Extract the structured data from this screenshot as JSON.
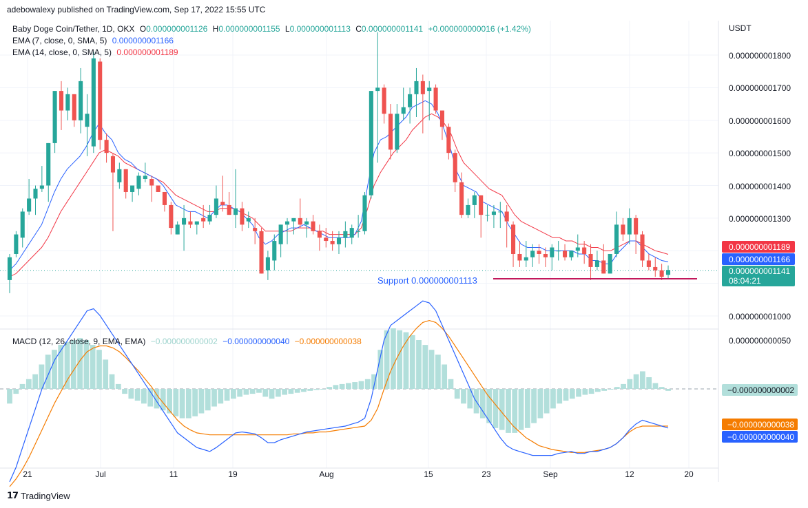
{
  "header": {
    "published": "adebowalexy published on TradingView.com, Sep 17, 2022 15:55 UTC"
  },
  "legend": {
    "symbol": "Baby Doge Coin/Tether, 1D, OKX",
    "ohlc_prefix_o": "O",
    "open": "0.000000001126",
    "ohlc_prefix_h": "H",
    "high": "0.000000001155",
    "ohlc_prefix_l": "L",
    "low": "0.000000001113",
    "ohlc_prefix_c": "C",
    "close": "0.000000001141",
    "change": "+0.000000000016 (+1.42%)",
    "ema7_label": "EMA (7, close, 0, SMA, 5)",
    "ema7_value": "0.000000001166",
    "ema14_label": "EMA (14, close, 0, SMA, 5)",
    "ema14_value": "0.000000001189",
    "macd_label": "MACD (12, 26, close, 9, EMA, EMA)",
    "macd_hist": "−0.000000000002",
    "macd_line": "−0.000000000040",
    "macd_signal": "−0.000000000038"
  },
  "price_axis": {
    "currency": "USDT",
    "ticks": [
      "0.000000001800",
      "0.000000001700",
      "0.000000001600",
      "0.000000001500",
      "0.000000001400",
      "0.000000001300",
      "0.000000001000"
    ]
  },
  "price_badges": {
    "ema14": "0.000000001189",
    "ema7": "0.000000001166",
    "close": "0.000000001141",
    "countdown": "08:04:21"
  },
  "macd_axis": {
    "tick": "0.000000000050"
  },
  "macd_badges": {
    "hist": "−0.000000000002",
    "signal": "−0.000000000038",
    "macd": "−0.000000000040"
  },
  "support_label": "Support 0.000000001113",
  "x_ticks": [
    "21",
    "Jul",
    "11",
    "19",
    "Aug",
    "15",
    "23",
    "Sep",
    "12",
    "20"
  ],
  "brand": "TradingView",
  "colors": {
    "up": "#26a69a",
    "down": "#ef5350",
    "ema7": "#2962ff",
    "ema14": "#f23645",
    "macd": "#2962ff",
    "signal": "#f57c00",
    "hist": "#b2dfdb",
    "support": "#c2185b"
  },
  "chart_data": {
    "type": "candlestick",
    "y_unit": "USDT",
    "candles_ohlc_e_minus_12": [
      [
        1110,
        1190,
        1070,
        1180
      ],
      [
        1190,
        1260,
        1180,
        1250
      ],
      [
        1240,
        1330,
        1210,
        1320
      ],
      [
        1320,
        1420,
        1310,
        1360
      ],
      [
        1360,
        1400,
        1310,
        1390
      ],
      [
        1390,
        1460,
        1380,
        1400
      ],
      [
        1400,
        1470,
        1350,
        1530
      ],
      [
        1530,
        1690,
        1500,
        1690
      ],
      [
        1690,
        1720,
        1570,
        1630
      ],
      [
        1630,
        1700,
        1600,
        1680
      ],
      [
        1680,
        1680,
        1580,
        1600
      ],
      [
        1600,
        1760,
        1560,
        1720
      ],
      [
        1580,
        1680,
        1490,
        1620
      ],
      [
        1520,
        1810,
        1500,
        1790
      ],
      [
        1780,
        1790,
        1510,
        1540
      ],
      [
        1540,
        1560,
        1470,
        1500
      ],
      [
        1490,
        1500,
        1260,
        1440
      ],
      [
        1410,
        1470,
        1390,
        1450
      ],
      [
        1450,
        1450,
        1360,
        1380
      ],
      [
        1380,
        1400,
        1350,
        1400
      ],
      [
        1390,
        1440,
        1370,
        1430
      ],
      [
        1420,
        1470,
        1410,
        1430
      ],
      [
        1420,
        1430,
        1350,
        1400
      ],
      [
        1400,
        1400,
        1380,
        1380
      ],
      [
        1380,
        1380,
        1320,
        1340
      ],
      [
        1340,
        1350,
        1250,
        1270
      ],
      [
        1250,
        1290,
        1250,
        1280
      ],
      [
        1280,
        1340,
        1200,
        1300
      ],
      [
        1290,
        1320,
        1270,
        1280
      ],
      [
        1280,
        1290,
        1250,
        1290
      ],
      [
        1300,
        1340,
        1270,
        1290
      ],
      [
        1290,
        1340,
        1280,
        1310
      ],
      [
        1310,
        1400,
        1300,
        1360
      ],
      [
        1350,
        1430,
        1320,
        1340
      ],
      [
        1340,
        1380,
        1310,
        1310
      ],
      [
        1310,
        1450,
        1270,
        1330
      ],
      [
        1330,
        1350,
        1260,
        1280
      ],
      [
        1290,
        1320,
        1270,
        1300
      ],
      [
        1270,
        1300,
        1220,
        1260
      ],
      [
        1260,
        1270,
        1160,
        1130
      ],
      [
        1140,
        1200,
        1110,
        1180
      ],
      [
        1170,
        1250,
        1140,
        1230
      ],
      [
        1220,
        1280,
        1180,
        1280
      ],
      [
        1280,
        1300,
        1220,
        1290
      ],
      [
        1290,
        1300,
        1250,
        1300
      ],
      [
        1300,
        1360,
        1270,
        1280
      ],
      [
        1280,
        1300,
        1240,
        1290
      ],
      [
        1290,
        1310,
        1250,
        1260
      ],
      [
        1260,
        1280,
        1200,
        1240
      ],
      [
        1240,
        1270,
        1210,
        1230
      ],
      [
        1230,
        1260,
        1200,
        1220
      ],
      [
        1220,
        1260,
        1190,
        1240
      ],
      [
        1240,
        1290,
        1210,
        1260
      ],
      [
        1240,
        1280,
        1220,
        1270
      ],
      [
        1260,
        1310,
        1240,
        1260
      ],
      [
        1260,
        1380,
        1250,
        1370
      ],
      [
        1370,
        1690,
        1360,
        1690
      ],
      [
        1690,
        1870,
        1470,
        1700
      ],
      [
        1700,
        1710,
        1590,
        1620
      ],
      [
        1620,
        1650,
        1480,
        1510
      ],
      [
        1510,
        1650,
        1500,
        1620
      ],
      [
        1620,
        1700,
        1600,
        1640
      ],
      [
        1640,
        1700,
        1590,
        1680
      ],
      [
        1680,
        1760,
        1610,
        1720
      ],
      [
        1720,
        1740,
        1560,
        1680
      ],
      [
        1690,
        1720,
        1600,
        1700
      ],
      [
        1700,
        1710,
        1620,
        1630
      ],
      [
        1630,
        1630,
        1540,
        1580
      ],
      [
        1580,
        1590,
        1480,
        1500
      ],
      [
        1500,
        1510,
        1380,
        1410
      ],
      [
        1410,
        1440,
        1300,
        1310
      ],
      [
        1310,
        1360,
        1300,
        1340
      ],
      [
        1340,
        1380,
        1300,
        1370
      ],
      [
        1370,
        1370,
        1240,
        1310
      ],
      [
        1310,
        1340,
        1290,
        1310
      ],
      [
        1310,
        1340,
        1270,
        1320
      ],
      [
        1320,
        1350,
        1270,
        1320
      ],
      [
        1320,
        1340,
        1210,
        1290
      ],
      [
        1280,
        1290,
        1150,
        1190
      ],
      [
        1190,
        1230,
        1150,
        1170
      ],
      [
        1170,
        1230,
        1150,
        1180
      ],
      [
        1180,
        1220,
        1150,
        1200
      ],
      [
        1200,
        1220,
        1160,
        1190
      ],
      [
        1190,
        1210,
        1150,
        1180
      ],
      [
        1180,
        1220,
        1140,
        1210
      ],
      [
        1200,
        1230,
        1170,
        1200
      ],
      [
        1200,
        1220,
        1170,
        1180
      ],
      [
        1180,
        1200,
        1170,
        1200
      ],
      [
        1200,
        1250,
        1180,
        1210
      ],
      [
        1210,
        1230,
        1160,
        1190
      ],
      [
        1190,
        1220,
        1110,
        1150
      ],
      [
        1150,
        1200,
        1140,
        1170
      ],
      [
        1170,
        1220,
        1150,
        1130
      ],
      [
        1130,
        1170,
        1130,
        1190
      ],
      [
        1190,
        1320,
        1180,
        1280
      ],
      [
        1280,
        1300,
        1230,
        1250
      ],
      [
        1250,
        1330,
        1220,
        1300
      ],
      [
        1300,
        1310,
        1190,
        1250
      ],
      [
        1250,
        1260,
        1150,
        1170
      ],
      [
        1170,
        1190,
        1140,
        1150
      ],
      [
        1150,
        1180,
        1120,
        1140
      ],
      [
        1140,
        1160,
        1110,
        1120
      ],
      [
        1126,
        1155,
        1113,
        1141
      ]
    ],
    "ema7": [
      1140,
      1160,
      1190,
      1220,
      1250,
      1280,
      1330,
      1380,
      1420,
      1450,
      1470,
      1490,
      1520,
      1560,
      1590,
      1560,
      1540,
      1500,
      1480,
      1470,
      1450,
      1440,
      1430,
      1420,
      1400,
      1370,
      1340,
      1330,
      1320,
      1320,
      1310,
      1300,
      1320,
      1340,
      1340,
      1330,
      1320,
      1300,
      1280,
      1240,
      1220,
      1230,
      1250,
      1260,
      1270,
      1270,
      1280,
      1270,
      1260,
      1250,
      1240,
      1240,
      1240,
      1240,
      1250,
      1290,
      1400,
      1500,
      1540,
      1550,
      1570,
      1590,
      1610,
      1640,
      1650,
      1660,
      1650,
      1620,
      1570,
      1510,
      1440,
      1400,
      1390,
      1380,
      1350,
      1340,
      1330,
      1320,
      1280,
      1250,
      1220,
      1210,
      1210,
      1210,
      1200,
      1200,
      1200,
      1200,
      1200,
      1190,
      1190,
      1170,
      1170,
      1160,
      1160,
      1190,
      1210,
      1230,
      1230,
      1210,
      1190,
      1180,
      1170,
      1166
    ],
    "ema14": [
      1120,
      1130,
      1150,
      1170,
      1190,
      1210,
      1240,
      1280,
      1320,
      1350,
      1380,
      1410,
      1440,
      1470,
      1500,
      1510,
      1500,
      1490,
      1470,
      1460,
      1450,
      1440,
      1430,
      1420,
      1410,
      1390,
      1370,
      1360,
      1350,
      1340,
      1330,
      1320,
      1320,
      1330,
      1330,
      1330,
      1320,
      1310,
      1300,
      1280,
      1260,
      1260,
      1260,
      1260,
      1260,
      1270,
      1270,
      1270,
      1260,
      1260,
      1250,
      1250,
      1250,
      1250,
      1250,
      1270,
      1330,
      1400,
      1440,
      1470,
      1500,
      1520,
      1540,
      1570,
      1590,
      1610,
      1620,
      1610,
      1590,
      1560,
      1510,
      1470,
      1450,
      1430,
      1410,
      1390,
      1380,
      1370,
      1340,
      1310,
      1290,
      1280,
      1270,
      1260,
      1250,
      1240,
      1240,
      1230,
      1230,
      1220,
      1220,
      1210,
      1210,
      1200,
      1200,
      1210,
      1220,
      1230,
      1230,
      1220,
      1210,
      1200,
      1195,
      1189
    ],
    "support": 1113,
    "macd_hist_e_minus_12": [
      -15,
      -5,
      5,
      10,
      15,
      25,
      35,
      40,
      45,
      48,
      50,
      52,
      50,
      45,
      40,
      30,
      15,
      5,
      -5,
      -10,
      -12,
      -15,
      -18,
      -20,
      -22,
      -25,
      -28,
      -30,
      -30,
      -28,
      -25,
      -22,
      -18,
      -15,
      -12,
      -10,
      -8,
      -6,
      -5,
      -4,
      -8,
      -10,
      -8,
      -6,
      -5,
      -4,
      -3,
      -2,
      -1,
      0,
      2,
      4,
      5,
      6,
      7,
      8,
      10,
      15,
      40,
      60,
      62,
      60,
      58,
      55,
      50,
      45,
      40,
      35,
      25,
      10,
      -10,
      -15,
      -20,
      -25,
      -30,
      -35,
      -40,
      -42,
      -45,
      -45,
      -42,
      -40,
      -35,
      -30,
      -25,
      -20,
      -15,
      -12,
      -10,
      -8,
      -6,
      -5,
      -3,
      -2,
      0,
      2,
      5,
      10,
      15,
      18,
      12,
      6,
      2,
      -2
    ],
    "macd_line_e_minus_12": [
      -95,
      -80,
      -60,
      -40,
      -20,
      0,
      15,
      30,
      40,
      50,
      60,
      70,
      80,
      82,
      75,
      65,
      55,
      45,
      35,
      25,
      15,
      5,
      -5,
      -15,
      -25,
      -35,
      -45,
      -50,
      -55,
      -60,
      -62,
      -64,
      -60,
      -55,
      -50,
      -45,
      -44,
      -45,
      -46,
      -50,
      -55,
      -55,
      -52,
      -50,
      -48,
      -46,
      -44,
      -43,
      -42,
      -41,
      -40,
      -39,
      -38,
      -36,
      -34,
      -30,
      -10,
      20,
      50,
      65,
      70,
      75,
      80,
      85,
      90,
      88,
      80,
      65,
      50,
      35,
      20,
      5,
      -10,
      -20,
      -30,
      -40,
      -50,
      -58,
      -62,
      -64,
      -66,
      -68,
      -68,
      -68,
      -68,
      -66,
      -65,
      -64,
      -66,
      -66,
      -64,
      -64,
      -62,
      -60,
      -56,
      -50,
      -42,
      -36,
      -32,
      -34,
      -36,
      -38,
      -40
    ],
    "macd_signal_e_minus_12": [
      -100,
      -92,
      -82,
      -70,
      -56,
      -42,
      -28,
      -14,
      -2,
      10,
      20,
      30,
      38,
      42,
      44,
      44,
      42,
      38,
      32,
      25,
      18,
      10,
      2,
      -8,
      -16,
      -24,
      -32,
      -38,
      -42,
      -45,
      -46,
      -47,
      -47,
      -47,
      -47,
      -47,
      -47,
      -47,
      -47,
      -47,
      -47,
      -47,
      -47,
      -47,
      -46,
      -46,
      -45,
      -45,
      -44,
      -44,
      -43,
      -42,
      -41,
      -40,
      -39,
      -38,
      -32,
      -20,
      0,
      18,
      32,
      44,
      54,
      62,
      68,
      70,
      68,
      62,
      54,
      44,
      34,
      24,
      14,
      4,
      -6,
      -14,
      -22,
      -30,
      -38,
      -44,
      -50,
      -54,
      -58,
      -60,
      -62,
      -63,
      -64,
      -65,
      -65,
      -65,
      -64,
      -63,
      -62,
      -60,
      -56,
      -50,
      -44,
      -40,
      -38,
      -38,
      -38,
      -38,
      -38
    ],
    "x_ticks": [
      "21",
      "Jul",
      "11",
      "19",
      "Aug",
      "15",
      "23",
      "Sep",
      "12",
      "20"
    ]
  }
}
